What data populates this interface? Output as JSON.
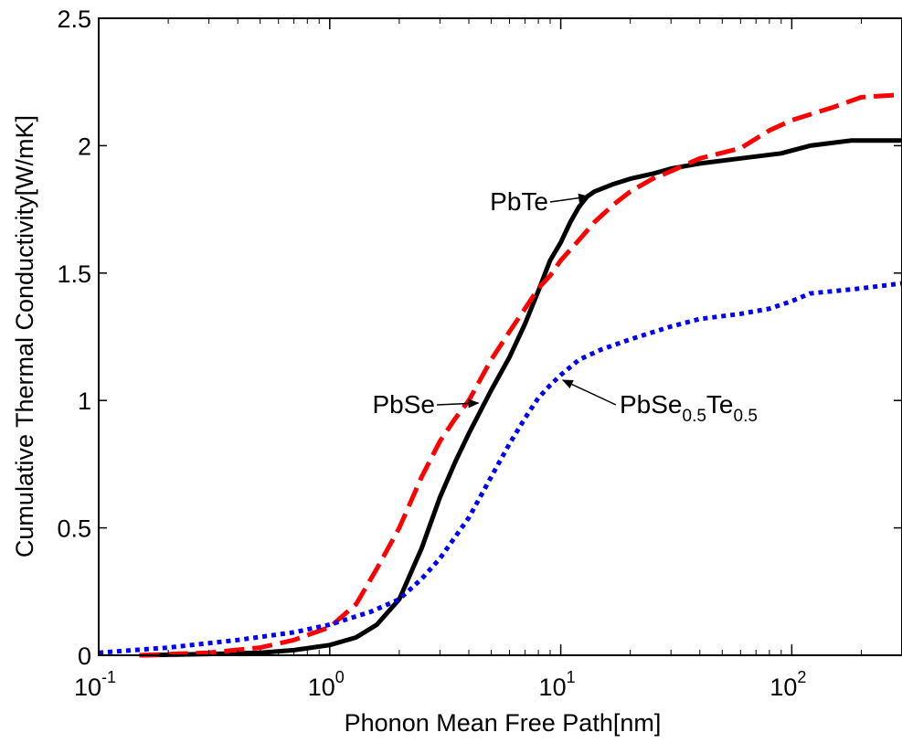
{
  "chart_data": {
    "type": "line",
    "title": "",
    "xlabel": "Phonon Mean Free Path[nm]",
    "ylabel": "Cumulative Thermal Conductivity[W/mK]",
    "xscale": "log",
    "xlim": [
      0.1,
      300
    ],
    "ylim": [
      0,
      2.5
    ],
    "grid": false,
    "legend": "none",
    "x_ticks": [
      {
        "base": "10",
        "exp": "-1",
        "value": 0.1
      },
      {
        "base": "10",
        "exp": "0",
        "value": 1
      },
      {
        "base": "10",
        "exp": "1",
        "value": 10
      },
      {
        "base": "10",
        "exp": "2",
        "value": 100
      }
    ],
    "y_ticks": [
      {
        "label": "0",
        "value": 0
      },
      {
        "label": "0.5",
        "value": 0.5
      },
      {
        "label": "1",
        "value": 1
      },
      {
        "label": "1.5",
        "value": 1.5
      },
      {
        "label": "2",
        "value": 2
      },
      {
        "label": "2.5",
        "value": 2.5
      }
    ],
    "series": [
      {
        "label": "PbTe",
        "color": "#000000",
        "dash": "solid",
        "x": [
          0.15,
          0.3,
          0.5,
          0.7,
          1.0,
          1.3,
          1.6,
          2.0,
          2.5,
          3.0,
          3.5,
          4.0,
          5.0,
          6.0,
          7.0,
          8.0,
          9.0,
          10.0,
          11.0,
          12.0,
          13.0,
          14.0,
          17.0,
          20.0,
          25.0,
          30.0,
          40.0,
          60.0,
          90.0,
          120.0,
          180.0,
          300.0
        ],
        "y": [
          0.0,
          0.005,
          0.01,
          0.02,
          0.04,
          0.07,
          0.12,
          0.22,
          0.42,
          0.62,
          0.76,
          0.87,
          1.04,
          1.17,
          1.3,
          1.43,
          1.55,
          1.62,
          1.7,
          1.76,
          1.8,
          1.82,
          1.85,
          1.87,
          1.89,
          1.91,
          1.93,
          1.95,
          1.97,
          2.0,
          2.02,
          2.02
        ]
      },
      {
        "label": "PbSe",
        "color": "#ff0000",
        "dash": "dashed",
        "x": [
          0.15,
          0.3,
          0.5,
          0.7,
          1.0,
          1.3,
          1.6,
          2.0,
          2.5,
          3.0,
          3.5,
          4.0,
          5.0,
          6.0,
          7.0,
          8.0,
          9.0,
          10.0,
          12.0,
          14.0,
          17.0,
          20.0,
          25.0,
          30.0,
          40.0,
          60.0,
          80.0,
          100.0,
          150.0,
          200.0,
          300.0
        ],
        "y": [
          0.0,
          0.01,
          0.03,
          0.06,
          0.11,
          0.2,
          0.34,
          0.5,
          0.7,
          0.84,
          0.93,
          1.0,
          1.16,
          1.27,
          1.36,
          1.44,
          1.49,
          1.55,
          1.63,
          1.7,
          1.77,
          1.82,
          1.87,
          1.9,
          1.95,
          1.99,
          2.06,
          2.1,
          2.15,
          2.19,
          2.2
        ]
      },
      {
        "label": "PbSe0.5Te0.5",
        "color": "#0000ff",
        "dash": "dotted",
        "x": [
          0.1,
          0.2,
          0.4,
          0.7,
          1.0,
          1.5,
          2.0,
          2.5,
          3.0,
          4.0,
          5.0,
          6.0,
          7.0,
          8.0,
          9.0,
          10.0,
          12.0,
          15.0,
          20.0,
          30.0,
          40.0,
          60.0,
          80.0,
          100.0,
          120.0,
          200.0,
          300.0
        ],
        "y": [
          0.01,
          0.03,
          0.06,
          0.09,
          0.12,
          0.17,
          0.22,
          0.3,
          0.38,
          0.54,
          0.7,
          0.83,
          0.93,
          1.01,
          1.06,
          1.1,
          1.16,
          1.2,
          1.24,
          1.29,
          1.32,
          1.34,
          1.36,
          1.39,
          1.42,
          1.44,
          1.46
        ]
      }
    ],
    "annotations": [
      {
        "id": "pbte",
        "text": "PbTe",
        "point_x": 13.2,
        "point_y": 1.8
      },
      {
        "id": "pbse",
        "text": "PbSe",
        "point_x": 4.4,
        "point_y": 0.99
      },
      {
        "id": "pbsete",
        "text": "PbSe",
        "sub1": "0.5",
        "text2": "Te",
        "sub2": "0.5",
        "point_x": 10.2,
        "point_y": 1.08
      }
    ]
  }
}
